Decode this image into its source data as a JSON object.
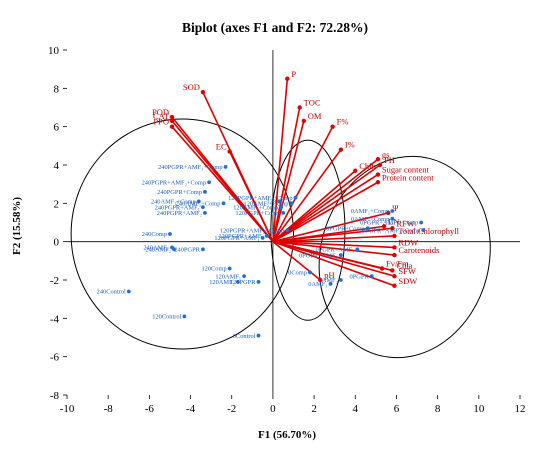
{
  "chart_data": {
    "type": "scatter",
    "title": "Biplot (axes F1 and F2: 72.28%)",
    "xlabel": "F1 (56.70%)",
    "ylabel": "F2 (15.58%)",
    "xlim": [
      -10,
      12
    ],
    "ylim": [
      -8,
      10
    ],
    "xticks": [
      -10,
      -8,
      -6,
      -4,
      -2,
      0,
      2,
      4,
      6,
      8,
      10,
      12
    ],
    "yticks": [
      -8,
      -6,
      -4,
      -2,
      0,
      2,
      4,
      6,
      8,
      10
    ],
    "grid": false,
    "colors": {
      "variables": "#e00000",
      "observations": "#1f6fd6",
      "ellipse": "#000000"
    },
    "variables": [
      {
        "name": "SOD",
        "x": -3.4,
        "y": 7.8
      },
      {
        "name": "POD",
        "x": -4.9,
        "y": 6.5
      },
      {
        "name": "CAT",
        "x": -4.9,
        "y": 6.3
      },
      {
        "name": "PPO",
        "x": -4.9,
        "y": 6.0
      },
      {
        "name": "EC",
        "x": -2.1,
        "y": 4.7
      },
      {
        "name": "P",
        "x": 0.7,
        "y": 8.5
      },
      {
        "name": "TOC",
        "x": 1.3,
        "y": 7.0
      },
      {
        "name": "OM",
        "x": 1.5,
        "y": 6.3
      },
      {
        "name": "F%",
        "x": 2.9,
        "y": 6.0
      },
      {
        "name": "I%",
        "x": 3.3,
        "y": 4.8
      },
      {
        "name": "Chlb",
        "x": 4.0,
        "y": 3.7
      },
      {
        "name": "gs",
        "x": 5.1,
        "y": 4.3
      },
      {
        "name": "PH",
        "x": 5.2,
        "y": 4.0
      },
      {
        "name": "Sugar content",
        "x": 5.1,
        "y": 3.5
      },
      {
        "name": "Protein content",
        "x": 5.1,
        "y": 3.1
      },
      {
        "name": "Ψ",
        "x": 5.6,
        "y": 1.5
      },
      {
        "name": "LN",
        "x": 5.4,
        "y": 0.8
      },
      {
        "name": "RFW",
        "x": 5.8,
        "y": 0.7
      },
      {
        "name": "Total Chlorophyll",
        "x": 5.9,
        "y": 0.3
      },
      {
        "name": "RDW",
        "x": 5.9,
        "y": -0.3
      },
      {
        "name": "Carotenoids",
        "x": 5.9,
        "y": -0.7
      },
      {
        "name": "Fv/Fm",
        "x": 5.3,
        "y": -1.4
      },
      {
        "name": "Chla",
        "x": 5.8,
        "y": -1.5
      },
      {
        "name": "SFW",
        "x": 5.9,
        "y": -1.8
      },
      {
        "name": "SDW",
        "x": 5.9,
        "y": -2.3
      },
      {
        "name": "pH",
        "x": 2.3,
        "y": -2.0
      }
    ],
    "observations": [
      {
        "name": "240Control",
        "x": -7.0,
        "y": -2.6
      },
      {
        "name": "120Control",
        "x": -4.3,
        "y": -3.9
      },
      {
        "name": "0Control",
        "x": -0.7,
        "y": -4.9
      },
      {
        "name": "240Comp",
        "x": -5.0,
        "y": 0.4
      },
      {
        "name": "240AMF₁",
        "x": -4.9,
        "y": -0.3
      },
      {
        "name": "240AMF₂",
        "x": -4.8,
        "y": -0.4
      },
      {
        "name": "240PGPR",
        "x": -3.4,
        "y": -0.4
      },
      {
        "name": "240PGPR+AMF₂+Comp",
        "x": -3.1,
        "y": 3.1
      },
      {
        "name": "240PGPR+Comp",
        "x": -3.3,
        "y": 2.6
      },
      {
        "name": "240AMF₁+Comp",
        "x": -3.6,
        "y": 2.1
      },
      {
        "name": "240PGPR+AMF₁",
        "x": -3.4,
        "y": 1.8
      },
      {
        "name": "240PGPR+AMF₂",
        "x": -3.3,
        "y": 1.5
      },
      {
        "name": "240AMF₂+Comp",
        "x": -2.4,
        "y": 2.0
      },
      {
        "name": "240PGPR+AMF₁+Comp",
        "x": -2.3,
        "y": 3.9
      },
      {
        "name": "120Comp",
        "x": -2.1,
        "y": -1.4
      },
      {
        "name": "120AMF₁",
        "x": -1.4,
        "y": -1.8
      },
      {
        "name": "120AMF₂",
        "x": -1.7,
        "y": -2.1
      },
      {
        "name": "120PGPR",
        "x": -0.7,
        "y": -2.1
      },
      {
        "name": "120PGPR+AMF₁",
        "x": -0.5,
        "y": 0.2
      },
      {
        "name": "120PGPR+AMF₂",
        "x": -0.3,
        "y": 0.3
      },
      {
        "name": "120PGPR+Comp",
        "x": 0.5,
        "y": 1.5
      },
      {
        "name": "120AMF₁+Comp",
        "x": 0.4,
        "y": 1.8
      },
      {
        "name": "120AMF₂+Comp",
        "x": 0.9,
        "y": 2.0
      },
      {
        "name": "120PGPR+AMF₁+Comp",
        "x": 1.1,
        "y": 2.3
      },
      {
        "name": "120",
        "x": 0.3,
        "y": 2.1
      },
      {
        "name": "120PGPR+AMF₂+Comp",
        "x": 0.7,
        "y": 0.6
      },
      {
        "name": "0Comp",
        "x": 1.8,
        "y": -1.6
      },
      {
        "name": "0AMF₁",
        "x": 2.8,
        "y": -2.2
      },
      {
        "name": "0AMF₂",
        "x": 3.3,
        "y": -2.0
      },
      {
        "name": "0PGPR",
        "x": 4.8,
        "y": -1.8
      },
      {
        "name": "0PGPR+AMF₁",
        "x": 4.1,
        "y": -0.4
      },
      {
        "name": "0PGPR+AMF₂",
        "x": 3.3,
        "y": -0.7
      },
      {
        "name": "0PGPR+Comp",
        "x": 4.6,
        "y": 0.7
      },
      {
        "name": "0AMF₁+Comp",
        "x": 5.8,
        "y": 1.6
      },
      {
        "name": "0AMF₂+Comp",
        "x": 5.8,
        "y": 1.2
      },
      {
        "name": "0PGPR+AMF₁+Comp",
        "x": 7.2,
        "y": 1.0
      },
      {
        "name": "0PGPR+AMF₂+Comp",
        "x": 7.3,
        "y": 0.6
      }
    ],
    "ellipses": [
      {
        "cx": -4.4,
        "cy": 0.4,
        "rx": 5.4,
        "ry": 6.0,
        "angle": 0
      },
      {
        "cx": 1.7,
        "cy": 0.6,
        "rx": 1.8,
        "ry": 4.7,
        "angle": 0
      },
      {
        "cx": 6.4,
        "cy": -0.8,
        "rx": 4.1,
        "ry": 5.3,
        "angle": -0.25
      }
    ]
  }
}
